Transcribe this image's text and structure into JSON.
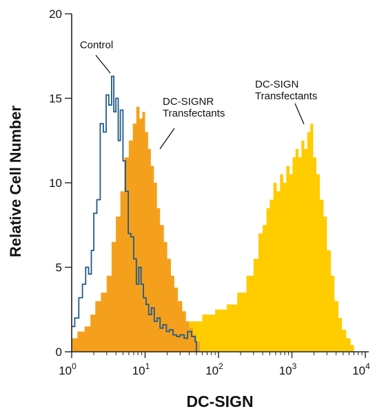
{
  "chart_data": {
    "type": "area",
    "xlabel": "DC-SIGN",
    "ylabel": "Relative Cell Number",
    "xscale": "log",
    "xlim": [
      1,
      10000
    ],
    "ylim": [
      0,
      20
    ],
    "x_ticks": [
      {
        "value": 1,
        "base": "10",
        "exp": "0"
      },
      {
        "value": 10,
        "base": "10",
        "exp": "1"
      },
      {
        "value": 100,
        "base": "10",
        "exp": "2"
      },
      {
        "value": 1000,
        "base": "10",
        "exp": "3"
      },
      {
        "value": 10000,
        "base": "10",
        "exp": "4"
      }
    ],
    "y_ticks": [
      0,
      5,
      10,
      15,
      20
    ],
    "annotations": [
      {
        "lines": [
          "Control"
        ],
        "series": 0
      },
      {
        "lines": [
          "DC-SIGNR",
          "Transfectants"
        ],
        "series": 1
      },
      {
        "lines": [
          "DC-SIGN",
          "Transfectants"
        ],
        "series": 2
      }
    ],
    "series": [
      {
        "name": "Control",
        "style": "outline",
        "color": "#1f5a8a",
        "x": [
          1.0,
          1.1,
          1.25,
          1.4,
          1.55,
          1.7,
          1.85,
          2.0,
          2.2,
          2.45,
          2.7,
          2.95,
          3.2,
          3.5,
          3.75,
          4.0,
          4.3,
          4.6,
          5.0,
          5.4,
          5.9,
          6.4,
          7.0,
          7.6,
          8.2,
          8.8,
          9.5,
          10.3,
          11.2,
          12.2,
          13.3,
          14.6,
          16.0,
          17.5,
          19.5,
          21.5,
          24.0,
          27.0,
          30.0,
          34.0,
          38.0,
          43.0,
          48.0,
          50.0
        ],
        "y": [
          1.5,
          2.0,
          3.2,
          4.0,
          5.0,
          4.6,
          6.0,
          8.2,
          9.0,
          13.5,
          13.0,
          15.2,
          14.6,
          16.3,
          14.2,
          15.0,
          12.5,
          14.3,
          11.3,
          9.5,
          7.0,
          6.8,
          5.5,
          4.0,
          5.0,
          4.0,
          3.2,
          2.8,
          2.2,
          2.6,
          1.8,
          2.0,
          1.4,
          1.6,
          1.2,
          1.3,
          1.0,
          0.9,
          1.0,
          0.8,
          1.2,
          0.9,
          0.6,
          0.0
        ]
      },
      {
        "name": "DC-SIGNR Transfectants",
        "style": "filled",
        "color": "#f5a01d",
        "x": [
          1.0,
          1.2,
          1.5,
          1.8,
          2.1,
          2.5,
          3.0,
          3.5,
          4.0,
          4.6,
          5.2,
          6.0,
          6.8,
          7.6,
          8.4,
          9.2,
          10.0,
          11.0,
          12.0,
          13.2,
          14.5,
          16.0,
          18.0,
          20.0,
          22.5,
          25.0,
          28.0,
          32.0,
          36.0,
          40.0,
          45.0,
          50.0,
          56.0
        ],
        "y": [
          0.8,
          1.2,
          1.5,
          2.2,
          3.0,
          3.5,
          4.5,
          6.5,
          8.0,
          9.5,
          11.5,
          12.5,
          13.5,
          14.5,
          13.8,
          14.2,
          13.0,
          12.0,
          11.0,
          10.0,
          8.5,
          7.5,
          6.5,
          5.5,
          4.5,
          3.8,
          3.0,
          2.4,
          1.8,
          1.4,
          1.0,
          0.6,
          0.0
        ]
      },
      {
        "name": "DC-SIGN Transfectants",
        "style": "filled",
        "color": "#ffcc00",
        "x": [
          1.0,
          2.0,
          4.0,
          8.0,
          15.0,
          25.0,
          40.0,
          60.0,
          90.0,
          130.0,
          180.0,
          240.0,
          300.0,
          350.0,
          400.0,
          450.0,
          500.0,
          560.0,
          620.0,
          690.0,
          760.0,
          840.0,
          930.0,
          1020.0,
          1120.0,
          1230.0,
          1350.0,
          1480.0,
          1620.0,
          1780.0,
          1950.0,
          2150.0,
          2400.0,
          2700.0,
          3000.0,
          3400.0,
          3800.0,
          4300.0,
          4800.0,
          5500.0,
          6300.0,
          7000.0
        ],
        "y": [
          0.4,
          0.5,
          0.5,
          0.6,
          0.8,
          1.2,
          1.8,
          2.2,
          2.5,
          2.8,
          3.5,
          4.5,
          5.5,
          7.0,
          7.5,
          8.5,
          9.0,
          10.0,
          9.5,
          10.5,
          10.0,
          11.0,
          10.5,
          11.5,
          12.0,
          11.5,
          12.5,
          12.0,
          13.0,
          13.5,
          11.5,
          10.5,
          9.0,
          8.0,
          6.0,
          4.5,
          3.0,
          2.0,
          1.3,
          0.8,
          0.4,
          0.0
        ]
      }
    ]
  }
}
